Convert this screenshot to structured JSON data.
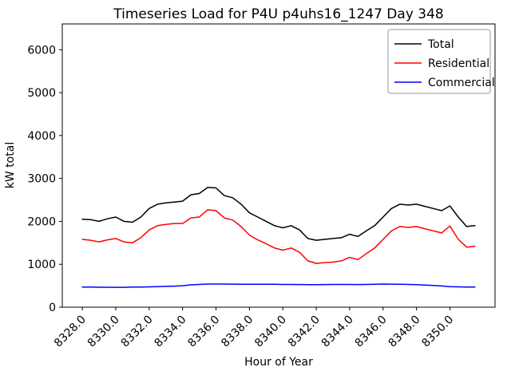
{
  "figure": {
    "title": "Timeseries Load for P4U p4uhs16_1247  Day 348",
    "xlabel": "Hour of Year",
    "ylabel": "kW total"
  },
  "chart_data": {
    "type": "line",
    "title": "Timeseries Load for P4U p4uhs16_1247  Day 348",
    "xlabel": "Hour of Year",
    "ylabel": "kW total",
    "xlim": [
      8326.8,
      8352.7
    ],
    "ylim": [
      0,
      6600
    ],
    "xticks": [
      8328,
      8330,
      8332,
      8334,
      8336,
      8338,
      8340,
      8342,
      8344,
      8346,
      8348,
      8350
    ],
    "xtick_labels": [
      "8328.0",
      "8330.0",
      "8332.0",
      "8334.0",
      "8336.0",
      "8338.0",
      "8340.0",
      "8342.0",
      "8344.0",
      "8346.0",
      "8348.0",
      "8350.0"
    ],
    "yticks": [
      0,
      1000,
      2000,
      3000,
      4000,
      5000,
      6000
    ],
    "ytick_labels": [
      "0",
      "1000",
      "2000",
      "3000",
      "4000",
      "5000",
      "6000"
    ],
    "grid": false,
    "legend_position": "upper right",
    "x": [
      8328.0,
      8328.5,
      8329.0,
      8329.5,
      8330.0,
      8330.5,
      8331.0,
      8331.5,
      8332.0,
      8332.5,
      8333.0,
      8333.5,
      8334.0,
      8334.5,
      8335.0,
      8335.5,
      8336.0,
      8336.5,
      8337.0,
      8337.5,
      8338.0,
      8338.5,
      8339.0,
      8339.5,
      8340.0,
      8340.5,
      8341.0,
      8341.5,
      8342.0,
      8342.5,
      8343.0,
      8343.5,
      8344.0,
      8344.5,
      8345.0,
      8345.5,
      8346.0,
      8346.5,
      8347.0,
      8347.5,
      8348.0,
      8348.5,
      8349.0,
      8349.5,
      8350.0,
      8350.5,
      8351.0,
      8351.5
    ],
    "series": [
      {
        "name": "Total",
        "color": "#000000",
        "values": [
          2050,
          2040,
          2000,
          2060,
          2100,
          2000,
          1980,
          2100,
          2300,
          2400,
          2430,
          2450,
          2470,
          2620,
          2650,
          2790,
          2780,
          2600,
          2550,
          2400,
          2200,
          2100,
          2000,
          1900,
          1850,
          1900,
          1800,
          1600,
          1560,
          1580,
          1600,
          1620,
          1700,
          1650,
          1780,
          1900,
          2100,
          2300,
          2400,
          2380,
          2400,
          2350,
          2300,
          2250,
          2360,
          2100,
          1880,
          1900
        ]
      },
      {
        "name": "Residential",
        "color": "#ff0000",
        "values": [
          1580,
          1560,
          1520,
          1570,
          1600,
          1520,
          1500,
          1620,
          1800,
          1900,
          1930,
          1950,
          1950,
          2080,
          2100,
          2270,
          2250,
          2080,
          2030,
          1880,
          1680,
          1570,
          1480,
          1380,
          1330,
          1380,
          1280,
          1080,
          1020,
          1040,
          1050,
          1080,
          1160,
          1110,
          1250,
          1380,
          1580,
          1780,
          1880,
          1860,
          1880,
          1830,
          1780,
          1730,
          1890,
          1580,
          1400,
          1420
        ]
      },
      {
        "name": "Commercial",
        "color": "#0000ff",
        "values": [
          470,
          468,
          465,
          465,
          462,
          463,
          468,
          470,
          475,
          480,
          485,
          490,
          500,
          520,
          530,
          540,
          540,
          540,
          538,
          536,
          535,
          535,
          534,
          533,
          530,
          530,
          528,
          527,
          526,
          528,
          530,
          530,
          530,
          528,
          530,
          535,
          540,
          538,
          535,
          530,
          525,
          515,
          505,
          495,
          480,
          475,
          470,
          470
        ]
      }
    ]
  }
}
